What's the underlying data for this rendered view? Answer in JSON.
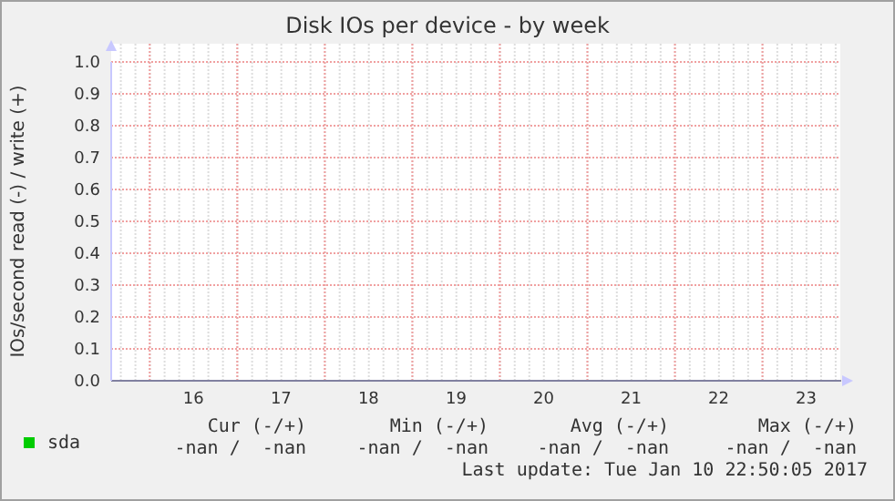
{
  "chart_data": {
    "type": "line",
    "title": "Disk IOs per device - by week",
    "ylabel": "IOs/second read (-) / write (+)",
    "categories": [
      "16",
      "17",
      "18",
      "19",
      "20",
      "21",
      "22",
      "23"
    ],
    "ylim": [
      0,
      1
    ],
    "yticks": [
      {
        "value": 0,
        "label": "0.0"
      },
      0.1,
      0.2,
      0.3,
      0.4,
      0.5,
      0.6,
      0.7,
      0.8,
      0.9,
      {
        "value": 1,
        "label": "1.0"
      }
    ],
    "series": [
      {
        "name": "sda",
        "color": "#00cc00",
        "values": [
          null,
          null,
          null,
          null,
          null,
          null,
          null,
          null
        ]
      }
    ],
    "grid": true,
    "legend": "bottom left",
    "annotations": [
      "Cur (-/+)",
      "Min (-/+)",
      "Avg (-/+)",
      "Max (-/+)",
      "-nan /  -nan",
      "-nan /  -nan",
      "-nan /  -nan",
      "-nan /  -nan",
      "Last update: Tue Jan 10 22:50:05 2017"
    ]
  }
}
